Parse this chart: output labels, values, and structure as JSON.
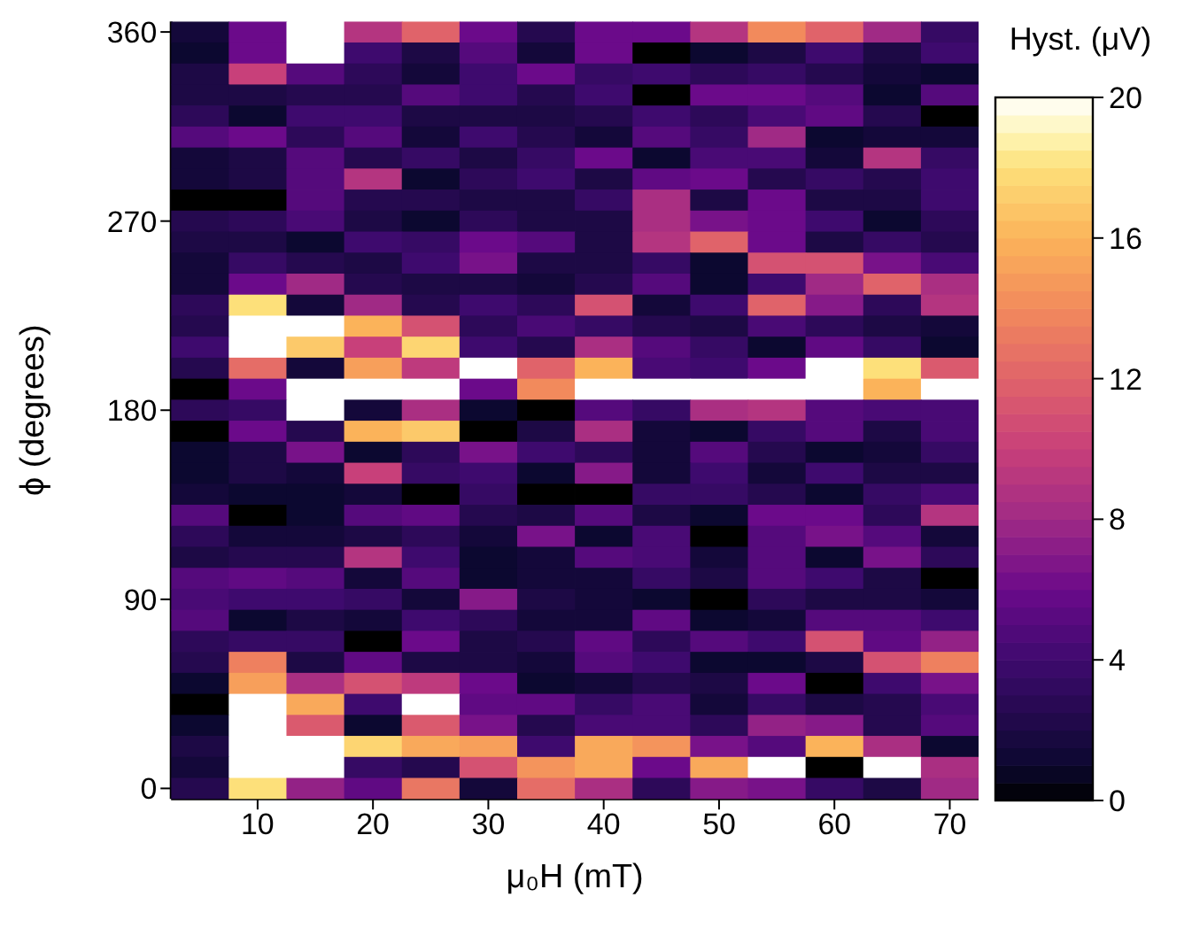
{
  "chart_data": {
    "type": "heatmap",
    "xlabel": "μ₀H (mT)",
    "ylabel": "ϕ (degrees)",
    "clabel": "Hyst. (μV)",
    "x": [
      5,
      10,
      15,
      20,
      25,
      30,
      35,
      40,
      45,
      50,
      55,
      60,
      65,
      70
    ],
    "xlim": [
      2.5,
      72.5
    ],
    "xticks": [
      10,
      20,
      30,
      40,
      50,
      60,
      70
    ],
    "ylim": [
      -5,
      365
    ],
    "yticks": [
      0,
      90,
      180,
      270,
      360
    ],
    "clim": [
      0,
      20
    ],
    "cticks": [
      0,
      4,
      8,
      12,
      16,
      20
    ],
    "cells": [
      [
        1.5,
        6,
        20,
        9,
        12,
        6,
        2.5,
        6,
        6,
        9,
        14,
        12,
        8,
        3.5
      ],
      [
        1,
        6,
        20,
        4,
        2,
        5,
        1.5,
        6,
        0,
        1,
        2,
        4,
        2,
        4
      ],
      [
        2,
        10,
        5,
        3,
        1.5,
        4,
        6,
        3.5,
        4,
        3,
        3.5,
        2.5,
        1.5,
        1
      ],
      [
        2,
        2,
        2.5,
        2.5,
        5,
        4,
        2.5,
        4,
        0,
        6,
        6,
        5,
        1,
        5
      ],
      [
        3,
        1,
        4,
        4,
        2,
        2,
        2,
        2.5,
        4,
        3,
        4.5,
        5.5,
        2.5,
        0
      ],
      [
        5,
        6,
        3,
        5,
        1.5,
        4,
        2.5,
        1.5,
        5,
        3.5,
        8,
        1,
        1.5,
        1.5
      ],
      [
        1.5,
        2,
        5,
        2.5,
        3.5,
        2,
        3.5,
        6,
        1,
        4.5,
        4.5,
        1.5,
        9,
        3.5
      ],
      [
        1.5,
        2,
        5,
        9,
        1,
        3,
        4,
        2,
        5.5,
        6,
        2.5,
        3.5,
        2.5,
        4
      ],
      [
        0,
        0,
        5,
        2.5,
        2.5,
        2,
        2,
        3.5,
        8.5,
        2,
        6,
        2,
        2,
        4
      ],
      [
        2.5,
        3,
        4.5,
        2,
        1,
        3,
        2,
        2,
        8.5,
        6.5,
        6,
        4,
        1,
        3
      ],
      [
        2,
        2,
        1,
        4,
        3.5,
        6,
        5,
        2,
        9,
        12,
        6,
        2,
        3.5,
        2.5
      ],
      [
        1.5,
        3.5,
        2.5,
        2,
        4,
        6.5,
        2,
        2,
        3.5,
        1,
        11,
        11,
        6.5,
        4.5
      ],
      [
        1.5,
        6,
        8,
        2.5,
        2,
        2,
        1.5,
        2.5,
        5,
        1,
        4,
        8,
        12,
        8.5
      ],
      [
        3,
        18,
        1.5,
        8,
        2.5,
        4,
        3,
        11,
        1.5,
        4,
        12,
        7,
        3,
        9
      ],
      [
        2.5,
        20,
        20,
        16,
        11,
        3,
        4.5,
        3.5,
        2.5,
        2,
        4.5,
        3,
        2,
        1.5
      ],
      [
        4,
        20,
        17,
        10,
        17.5,
        4,
        2.5,
        8.5,
        5,
        3.5,
        1,
        5.5,
        3.5,
        1
      ],
      [
        2.5,
        12.5,
        1.5,
        15,
        9.5,
        20,
        12,
        16,
        4.5,
        4,
        6,
        20,
        18,
        11.5
      ],
      [
        0,
        6,
        20,
        20,
        20,
        6,
        14,
        20,
        20,
        20,
        20,
        20,
        16,
        20
      ],
      [
        3,
        3.5,
        20,
        1.5,
        8.5,
        1,
        0,
        5,
        3.5,
        8.5,
        9,
        5,
        4.5,
        4.5
      ],
      [
        0,
        6,
        2.5,
        16,
        17,
        0,
        2,
        8.5,
        1.5,
        1,
        3.5,
        5,
        2,
        4.5
      ],
      [
        1,
        2,
        6.5,
        1,
        3,
        6.5,
        4,
        3,
        1.5,
        5,
        2.5,
        1,
        1.5,
        3.5
      ],
      [
        1,
        2,
        1.5,
        10,
        3.5,
        4,
        1,
        7,
        1.5,
        4,
        1.5,
        4,
        2,
        2
      ],
      [
        1.5,
        1,
        1,
        1.5,
        0,
        3.5,
        0,
        0,
        3.5,
        3.5,
        2.5,
        1,
        3.5,
        4.5
      ],
      [
        5,
        0,
        1,
        5,
        5.5,
        2.5,
        2,
        5,
        2,
        1,
        6,
        6,
        3,
        9
      ],
      [
        3,
        1.5,
        1.5,
        2,
        3,
        1.5,
        6.5,
        1,
        4.5,
        0,
        5,
        6.5,
        5,
        1.5
      ],
      [
        2,
        2.5,
        2.5,
        9,
        4,
        1,
        1.5,
        5,
        4.5,
        1.5,
        5,
        1,
        6.5,
        3
      ],
      [
        5,
        5.5,
        5,
        1.5,
        5,
        1,
        1.5,
        1.5,
        3.5,
        2,
        5,
        4,
        2,
        0
      ],
      [
        4.5,
        4,
        4,
        3.5,
        1.5,
        7,
        2,
        1.5,
        1,
        0,
        3,
        2,
        2,
        1.5
      ],
      [
        5,
        1,
        2,
        1.5,
        4,
        3,
        1.5,
        1.5,
        5.5,
        1,
        1.5,
        5,
        5,
        4
      ],
      [
        3,
        3.5,
        3.5,
        0,
        6,
        2,
        2.5,
        5.5,
        3,
        5,
        4,
        11,
        5.5,
        7.5
      ],
      [
        2.5,
        13.5,
        2,
        5.5,
        2,
        2,
        1.5,
        5,
        4,
        1,
        1,
        2,
        11,
        13.5
      ],
      [
        1,
        15,
        8.5,
        11,
        9.5,
        6,
        1,
        1.5,
        2.5,
        2,
        6,
        0,
        4,
        6.5
      ],
      [
        0,
        20,
        15.5,
        4,
        20,
        5.5,
        5.5,
        3.5,
        4.5,
        1.5,
        3.5,
        2,
        2.5,
        4.5
      ],
      [
        1,
        20,
        11.5,
        1,
        11.5,
        6.5,
        2.5,
        4.5,
        4.5,
        3,
        7.5,
        7,
        2.5,
        5
      ],
      [
        2,
        20,
        20,
        17.5,
        15.5,
        15,
        4,
        15.5,
        14.5,
        6.5,
        5,
        16,
        8.5,
        1
      ],
      [
        1.5,
        20,
        20,
        3.5,
        2.5,
        11,
        14.5,
        15.5,
        6,
        15.5,
        20,
        0,
        20,
        8.5
      ],
      [
        2.5,
        18,
        7.5,
        5.5,
        13,
        1.5,
        12.5,
        8.5,
        3,
        7,
        6.5,
        3.5,
        2,
        8
      ]
    ]
  }
}
